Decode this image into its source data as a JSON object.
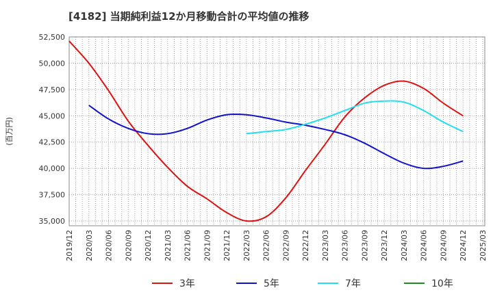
{
  "chart_data": {
    "type": "line",
    "title": "[4182]  当期純利益12か月移動合計の平均値の推移",
    "ylabel": "(百万円)",
    "xlabel": "",
    "ylim": [
      34500,
      52500
    ],
    "yticks": [
      35000,
      37500,
      40000,
      42500,
      45000,
      47500,
      50000,
      52500
    ],
    "ytick_labels": [
      "35,000",
      "37,500",
      "40,000",
      "42,500",
      "45,000",
      "47,500",
      "50,000",
      "52,500"
    ],
    "xticks": [
      "2019/12",
      "2020/03",
      "2020/06",
      "2020/09",
      "2020/12",
      "2021/03",
      "2021/06",
      "2021/09",
      "2021/12",
      "2022/03",
      "2022/06",
      "2022/09",
      "2022/12",
      "2023/03",
      "2023/06",
      "2023/09",
      "2023/12",
      "2024/03",
      "2024/06",
      "2024/09",
      "2024/12",
      "2025/03"
    ],
    "grid": true,
    "legend": "bottom",
    "series": [
      {
        "name": "3年",
        "color": "#dd1111",
        "x": [
          "2019/12",
          "2020/03",
          "2020/06",
          "2020/09",
          "2020/12",
          "2021/03",
          "2021/06",
          "2021/09",
          "2021/12",
          "2022/03",
          "2022/06",
          "2022/09",
          "2022/12",
          "2023/03",
          "2023/06",
          "2023/09",
          "2023/12",
          "2024/03",
          "2024/06",
          "2024/09",
          "2024/12"
        ],
        "values": [
          52100,
          50000,
          47400,
          44500,
          42200,
          40100,
          38300,
          37100,
          35800,
          35000,
          35400,
          37200,
          39800,
          42300,
          44900,
          46700,
          47900,
          48300,
          47600,
          46200,
          45000
        ]
      },
      {
        "name": "5年",
        "color": "#1111cc",
        "x": [
          "2020/03",
          "2020/06",
          "2020/09",
          "2020/12",
          "2021/03",
          "2021/06",
          "2021/09",
          "2021/12",
          "2022/03",
          "2022/06",
          "2022/09",
          "2022/12",
          "2023/03",
          "2023/06",
          "2023/09",
          "2023/12",
          "2024/03",
          "2024/06",
          "2024/09",
          "2024/12"
        ],
        "values": [
          46000,
          44700,
          43800,
          43300,
          43300,
          43800,
          44600,
          45100,
          45100,
          44800,
          44400,
          44100,
          43700,
          43200,
          42400,
          41400,
          40500,
          40000,
          40200,
          40700
        ]
      },
      {
        "name": "7年",
        "color": "#22ddee",
        "x": [
          "2022/03",
          "2022/06",
          "2022/09",
          "2022/12",
          "2023/03",
          "2023/06",
          "2023/09",
          "2023/12",
          "2024/03",
          "2024/06",
          "2024/09",
          "2024/12"
        ],
        "values": [
          43300,
          43500,
          43700,
          44200,
          44800,
          45500,
          46200,
          46400,
          46300,
          45500,
          44400,
          43500
        ]
      },
      {
        "name": "10年",
        "color": "#228822",
        "x": [],
        "values": []
      }
    ]
  }
}
